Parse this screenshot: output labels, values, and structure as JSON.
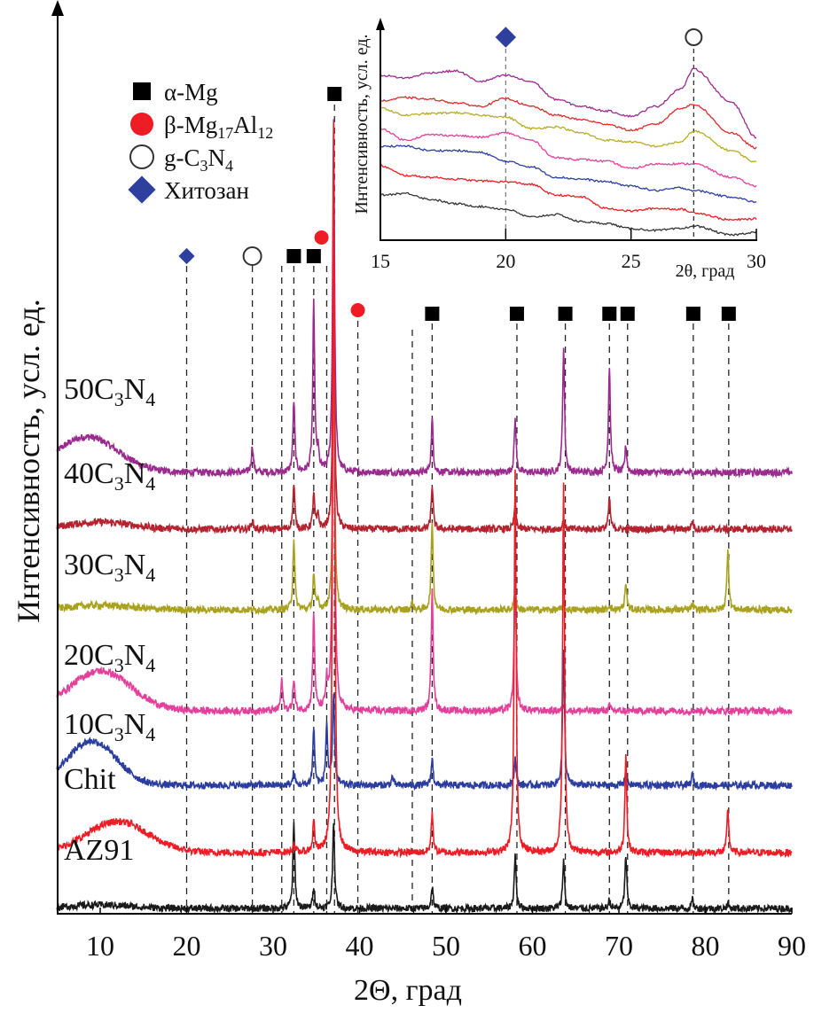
{
  "chart_data": [
    {
      "type": "line",
      "xlabel": "2Θ, град",
      "ylabel": "Интенсивность, усл. ед.",
      "xlim": [
        5,
        90
      ],
      "ylim": [
        0,
        103
      ],
      "xticks": [
        "10",
        "20",
        "30",
        "40",
        "50",
        "60",
        "70",
        "80",
        "90"
      ],
      "grid": false,
      "legend_position": "top-left",
      "legend": [
        {
          "symbol": "square",
          "color": "#000000",
          "label": "α-Mg"
        },
        {
          "symbol": "circle",
          "color": "#ee1c25",
          "label": "β-Mg",
          "sub1": "17",
          "label2": "Al",
          "sub2": "12"
        },
        {
          "symbol": "open-circle",
          "color": "#333333",
          "label": "g-C",
          "sub1": "3",
          "label2": "N",
          "sub2": "4"
        },
        {
          "symbol": "diamond",
          "color": "#2e3f9e",
          "label": "Хитозан"
        }
      ],
      "reference_lines": [
        {
          "x": 20.0,
          "marker": "diamond"
        },
        {
          "x": 27.6,
          "marker": "open-circle"
        },
        {
          "x": 31.0,
          "marker": null
        },
        {
          "x": 32.4,
          "marker": "square"
        },
        {
          "x": 34.7,
          "marker": "square"
        },
        {
          "x": 36.2,
          "marker": "circle",
          "marker_x": 35.6
        },
        {
          "x": 37.1,
          "marker": "square",
          "marker_high": true
        },
        {
          "x": 39.8,
          "marker": "circle"
        },
        {
          "x": 46.1,
          "marker": null
        },
        {
          "x": 48.4,
          "marker": "square"
        },
        {
          "x": 58.2,
          "marker": "square"
        },
        {
          "x": 63.8,
          "marker": "square"
        },
        {
          "x": 68.9,
          "marker": "square"
        },
        {
          "x": 71.0,
          "marker": "square"
        },
        {
          "x": 78.6,
          "marker": "square"
        },
        {
          "x": 82.7,
          "marker": "square"
        }
      ],
      "series": [
        {
          "name": "50C",
          "sub1": "3",
          "name2": "N",
          "sub2": "4",
          "color": "#9b2a8e",
          "baseline": 49.7,
          "hump": [
            8.5,
            4.0,
            5
          ],
          "peaks": [
            [
              27.6,
              3
            ],
            [
              32.4,
              8
            ],
            [
              34.7,
              19
            ],
            [
              35.2,
              2
            ],
            [
              37.0,
              40
            ],
            [
              48.4,
              6
            ],
            [
              58.0,
              6
            ],
            [
              63.6,
              14
            ],
            [
              68.9,
              12
            ],
            [
              70.8,
              3
            ]
          ]
        },
        {
          "name": "40C",
          "sub1": "3",
          "name2": "N",
          "sub2": "4",
          "color": "#b5232e",
          "baseline": 43.3,
          "hump": [
            10,
            0.8,
            5
          ],
          "peaks": [
            [
              27.6,
              1
            ],
            [
              32.4,
              5
            ],
            [
              34.7,
              4
            ],
            [
              35.2,
              1.5
            ],
            [
              37.0,
              30
            ],
            [
              48.4,
              5
            ],
            [
              58.0,
              3
            ],
            [
              63.6,
              1
            ],
            [
              68.9,
              3.5
            ],
            [
              78.5,
              1
            ]
          ]
        },
        {
          "name": "30C",
          "sub1": "3",
          "name2": "N",
          "sub2": "4",
          "color": "#a9a21f",
          "baseline": 34.2,
          "hump": [
            10,
            0.5,
            5
          ],
          "peaks": [
            [
              32.4,
              8
            ],
            [
              34.7,
              4
            ],
            [
              35.2,
              1
            ],
            [
              37.0,
              30
            ],
            [
              46.1,
              0.8
            ],
            [
              48.4,
              10
            ],
            [
              58.0,
              2
            ],
            [
              63.6,
              0.6
            ],
            [
              68.9,
              0.6
            ],
            [
              70.8,
              3
            ],
            [
              78.5,
              0.6
            ],
            [
              82.6,
              7
            ]
          ]
        },
        {
          "name": "20C",
          "sub1": "3",
          "name2": "N",
          "sub2": "4",
          "color": "#e2409a",
          "baseline": 22.8,
          "hump": [
            10,
            4.5,
            5
          ],
          "peaks": [
            [
              31.0,
              3.5
            ],
            [
              32.4,
              3.5
            ],
            [
              34.7,
              11
            ],
            [
              36.2,
              3
            ],
            [
              37.0,
              55
            ],
            [
              48.4,
              14
            ],
            [
              58.0,
              16
            ],
            [
              63.6,
              0.8
            ],
            [
              68.9,
              0.6
            ]
          ]
        },
        {
          "name": "10C",
          "sub1": "3",
          "name2": "N",
          "sub2": "4",
          "color": "#2b3ea0",
          "baseline": 14.4,
          "hump": [
            9,
            5.0,
            4
          ],
          "peaks": [
            [
              32.4,
              1.5
            ],
            [
              34.7,
              6.5
            ],
            [
              36.2,
              7
            ],
            [
              37.0,
              10.5
            ],
            [
              43.8,
              1
            ],
            [
              48.4,
              3
            ],
            [
              58.0,
              3
            ],
            [
              63.6,
              15
            ],
            [
              70.8,
              1.5
            ],
            [
              78.5,
              1.2
            ]
          ]
        },
        {
          "name": "Chit",
          "color": "#ee1c25",
          "baseline": 6.8,
          "hump": [
            12,
            3.5,
            5
          ],
          "peaks": [
            [
              32.4,
              1
            ],
            [
              34.7,
              3.5
            ],
            [
              37.0,
              82
            ],
            [
              48.4,
              4.5
            ],
            [
              58.0,
              43
            ],
            [
              63.6,
              41.5
            ],
            [
              70.8,
              11
            ],
            [
              82.6,
              5
            ]
          ]
        },
        {
          "name": "AZ91",
          "color": "#1a1a1a",
          "baseline": 0.5,
          "hump": [
            10,
            0.4,
            5
          ],
          "peaks": [
            [
              32.4,
              9.5
            ],
            [
              34.7,
              2.5
            ],
            [
              37.0,
              10
            ],
            [
              48.4,
              2.5
            ],
            [
              58.0,
              6
            ],
            [
              63.6,
              5.5
            ],
            [
              68.9,
              1
            ],
            [
              70.8,
              6
            ],
            [
              78.5,
              1
            ],
            [
              82.6,
              0.6
            ]
          ]
        }
      ]
    },
    {
      "type": "line",
      "xlabel": "2θ, град",
      "ylabel": "Интенсивность, усл. ед.",
      "xlim": [
        15,
        30
      ],
      "xticks": [
        "15",
        "20",
        "25",
        "30"
      ],
      "reference_lines": [
        {
          "x": 20,
          "marker": "diamond"
        },
        {
          "x": 27.5,
          "marker": "open-circle"
        }
      ],
      "x": [
        15,
        16,
        17,
        18,
        19,
        20,
        21,
        22,
        23,
        24,
        25,
        26,
        27,
        27.5,
        29,
        30
      ],
      "series": [
        {
          "color": "#9b2a8e",
          "values": [
            75.6,
            74.4,
            76.8,
            77.6,
            72.8,
            75.6,
            72.8,
            64.6,
            61.4,
            59.3,
            56.9,
            61.4,
            69.5,
            78.5,
            63.4,
            47.2
          ]
        },
        {
          "color": "#e02a2a",
          "values": [
            63.8,
            65.4,
            64.6,
            63.0,
            61.4,
            65.0,
            61.4,
            57.3,
            55.3,
            53.3,
            50.4,
            53.3,
            60.6,
            62.2,
            49.2,
            42.3
          ]
        },
        {
          "color": "#b6ad1c",
          "values": [
            60.6,
            57.3,
            58.1,
            58.5,
            57.3,
            56.5,
            51.2,
            52.0,
            49.2,
            45.9,
            45.1,
            43.1,
            45.1,
            50.0,
            41.1,
            35.8
          ]
        },
        {
          "color": "#e2409a",
          "values": [
            51.2,
            45.9,
            48.4,
            48.0,
            47.2,
            49.2,
            45.9,
            37.8,
            37.0,
            36.2,
            32.9,
            35.0,
            35.0,
            35.0,
            28.9,
            24.8
          ]
        },
        {
          "color": "#2b3ea0",
          "values": [
            43.1,
            43.1,
            41.1,
            41.1,
            40.2,
            36.2,
            33.7,
            28.9,
            28.0,
            26.8,
            24.8,
            22.8,
            24.0,
            22.8,
            19.9,
            17.5
          ]
        },
        {
          "color": "#ee1c25",
          "values": [
            34.1,
            29.7,
            28.9,
            28.0,
            27.2,
            26.8,
            25.6,
            20.7,
            19.9,
            14.6,
            13.4,
            14.6,
            14.2,
            12.6,
            9.3,
            9.8
          ]
        },
        {
          "color": "#333333",
          "values": [
            20.7,
            21.5,
            18.7,
            16.7,
            15.4,
            14.2,
            10.6,
            11.8,
            8.5,
            7.7,
            5.3,
            4.5,
            5.3,
            6.5,
            2.4,
            3.7
          ]
        }
      ]
    }
  ]
}
